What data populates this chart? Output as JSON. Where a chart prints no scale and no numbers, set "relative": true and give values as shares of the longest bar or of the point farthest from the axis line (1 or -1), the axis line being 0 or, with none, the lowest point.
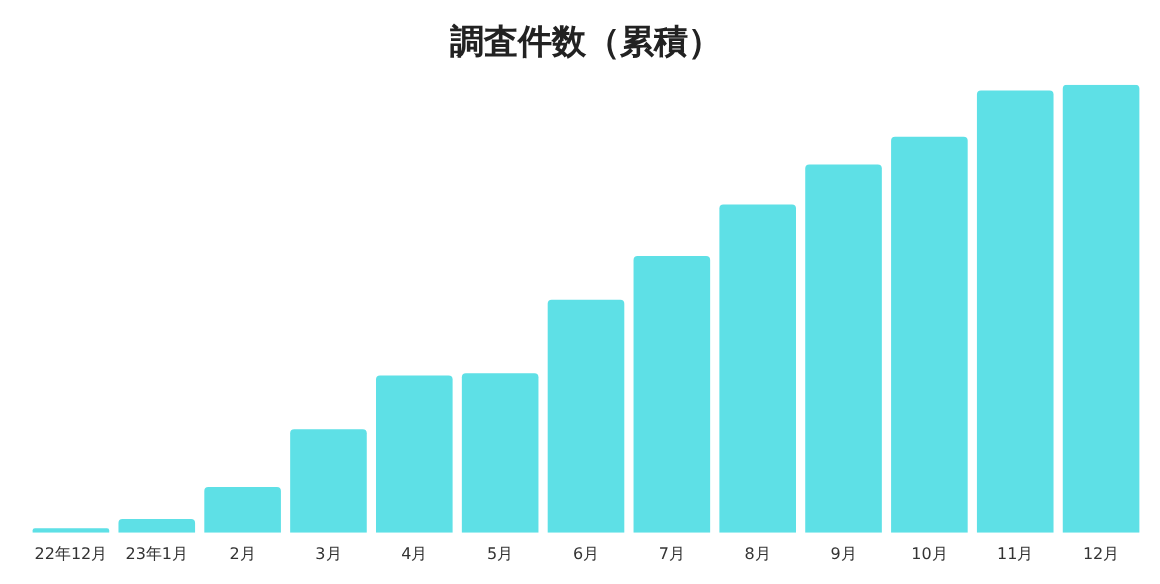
{
  "chart_data": {
    "type": "bar",
    "title": "調査件数（累積）",
    "relative": true,
    "color": "#5ee0e6",
    "grid": false,
    "legend": false,
    "categories": [
      "22年12月",
      "23年1月",
      "2月",
      "3月",
      "4月",
      "5月",
      "6月",
      "7月",
      "8月",
      "9月",
      "10月",
      "11月",
      "12月"
    ],
    "values": [
      0.01,
      0.031,
      0.102,
      0.231,
      0.351,
      0.356,
      0.52,
      0.618,
      0.733,
      0.822,
      0.884,
      0.987,
      1
    ]
  }
}
